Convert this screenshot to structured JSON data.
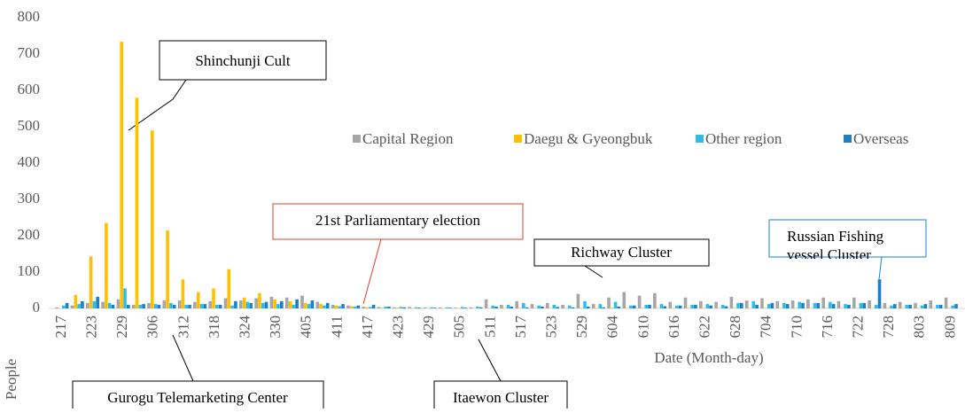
{
  "chart_data": {
    "type": "bar",
    "x_label": "Date (Month-day)",
    "y_label": "People",
    "categories": [
      "217",
      null,
      "223",
      null,
      "229",
      null,
      "306",
      null,
      "312",
      null,
      "318",
      null,
      "324",
      null,
      "330",
      null,
      "405",
      null,
      "411",
      null,
      "417",
      null,
      "423",
      null,
      "429",
      null,
      "505",
      null,
      "511",
      null,
      "517",
      null,
      "523",
      null,
      "529",
      null,
      "604",
      null,
      "610",
      null,
      "616",
      null,
      "622",
      null,
      "628",
      null,
      "704",
      null,
      "710",
      null,
      "716",
      null,
      "722",
      null,
      "728",
      null,
      "803",
      null,
      "809"
    ],
    "series": [
      {
        "name": "Capital Region",
        "color": "#a6a6a6",
        "values": [
          3,
          8,
          15,
          18,
          25,
          10,
          15,
          22,
          22,
          18,
          20,
          28,
          22,
          28,
          32,
          30,
          35,
          18,
          10,
          8,
          5,
          4,
          3,
          4,
          3,
          3,
          2,
          3,
          25,
          10,
          20,
          12,
          15,
          10,
          40,
          12,
          30,
          45,
          35,
          42,
          18,
          30,
          20,
          18,
          32,
          22,
          28,
          20,
          22,
          25,
          30,
          20,
          30,
          22,
          15,
          18,
          15,
          22,
          30
        ]
      },
      {
        "name": "Daegu & Gyeongbuk",
        "color": "#ffc000",
        "values": [
          0,
          37,
          143,
          235,
          734,
          580,
          490,
          215,
          80,
          45,
          55,
          108,
          30,
          42,
          25,
          20,
          15,
          12,
          8,
          6,
          3,
          2,
          2,
          1,
          1,
          1,
          1,
          1,
          1,
          1,
          1,
          1,
          1,
          1,
          1,
          1,
          2,
          1,
          1,
          1,
          1,
          1,
          1,
          1,
          1,
          1,
          1,
          1,
          1,
          1,
          1,
          1,
          1,
          1,
          1,
          1,
          1,
          1,
          1
        ]
      },
      {
        "name": "Other region",
        "color": "#2dbdec",
        "values": [
          8,
          12,
          20,
          15,
          55,
          10,
          12,
          15,
          10,
          12,
          10,
          8,
          18,
          15,
          12,
          10,
          12,
          8,
          6,
          5,
          4,
          5,
          4,
          3,
          3,
          3,
          4,
          5,
          8,
          10,
          15,
          8,
          10,
          8,
          20,
          12,
          18,
          8,
          10,
          12,
          8,
          10,
          12,
          10,
          15,
          20,
          12,
          15,
          18,
          15,
          18,
          12,
          15,
          10,
          8,
          10,
          8,
          10,
          8
        ]
      },
      {
        "name": "Overseas",
        "color": "#1f7fc4",
        "values": [
          15,
          20,
          32,
          10,
          10,
          12,
          10,
          10,
          10,
          12,
          10,
          20,
          15,
          18,
          20,
          25,
          22,
          15,
          12,
          8,
          10,
          5,
          3,
          2,
          2,
          2,
          2,
          3,
          5,
          5,
          3,
          5,
          4,
          3,
          5,
          3,
          5,
          8,
          10,
          6,
          8,
          10,
          8,
          6,
          15,
          10,
          15,
          12,
          15,
          15,
          12,
          10,
          15,
          80,
          12,
          10,
          12,
          10,
          12
        ]
      }
    ],
    "ylim": [
      0,
      800
    ],
    "yticks": [
      0,
      100,
      200,
      300,
      400,
      500,
      600,
      700,
      800
    ],
    "grid": false,
    "legend": "top-right",
    "annotations": [
      "Shinchunji Cult",
      "Gurogu Telemarketing Center",
      "21st Parliamentary election",
      "Richway Cluster",
      "Itaewon Cluster",
      "Russian Fishing vessel Cluster"
    ]
  }
}
